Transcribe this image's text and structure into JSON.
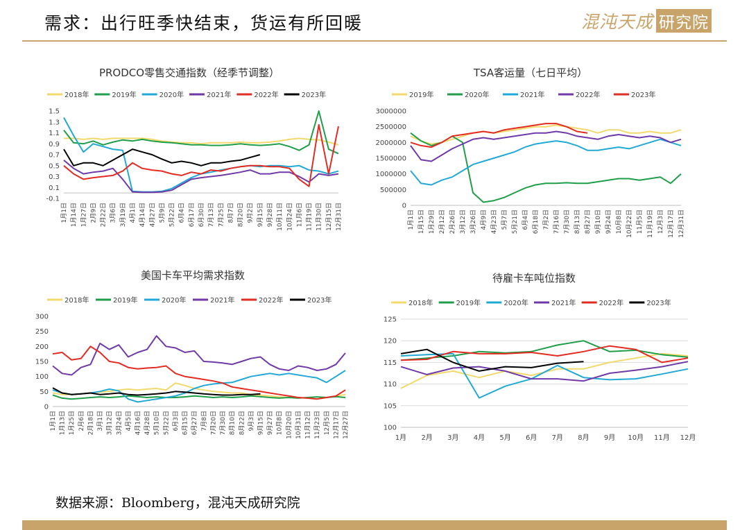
{
  "page": {
    "title": "需求：出行旺季快结束，货运有所回暖",
    "logo_text": "混沌天成",
    "logo_box_text": "研究院",
    "source": "数据来源：Bloomberg，混沌天成研究院",
    "accent_color": "#c9a46a"
  },
  "chart_data": [
    {
      "type": "line",
      "title": "PRODCO零售交通指数（经季节调整）",
      "ylim": [
        -0.1,
        1.5
      ],
      "yticks": [
        -0.1,
        0.1,
        0.3,
        0.5,
        0.7,
        0.9,
        1.1,
        1.3,
        1.5
      ],
      "x_labels": [
        "1月1日",
        "1月14日",
        "1月27日",
        "2月9日",
        "2月22日",
        "3月6日",
        "3月19日",
        "4月1日",
        "4月14日",
        "4月27日",
        "5月9日",
        "5月22日",
        "6月4日",
        "6月17日",
        "6月30日",
        "7月13日",
        "7月25日",
        "8月7日",
        "8月20日",
        "9月2日",
        "9月15日",
        "9月28日",
        "10月11日",
        "10月24日",
        "11月6日",
        "11月19日",
        "11月30日",
        "12月15日",
        "12月31日"
      ],
      "legend": "top",
      "grid": false,
      "series": [
        {
          "name": "2018年",
          "color": "#f2d96b",
          "values": [
            1.0,
            1.0,
            0.98,
            1.0,
            0.98,
            1.0,
            1.0,
            1.0,
            1.0,
            0.98,
            0.95,
            0.93,
            0.92,
            0.92,
            0.9,
            0.92,
            0.92,
            0.92,
            0.93,
            0.92,
            0.92,
            0.93,
            0.95,
            0.98,
            1.0,
            0.98,
            0.97,
            0.93,
            0.88
          ]
        },
        {
          "name": "2019年",
          "color": "#1f9e4a",
          "values": [
            1.15,
            0.92,
            0.9,
            0.95,
            0.88,
            0.93,
            0.97,
            0.95,
            0.98,
            0.95,
            0.93,
            0.92,
            0.9,
            0.88,
            0.88,
            0.87,
            0.87,
            0.88,
            0.9,
            0.88,
            0.87,
            0.88,
            0.9,
            0.85,
            0.78,
            0.88,
            1.5,
            0.8,
            0.72
          ]
        },
        {
          "name": "2020年",
          "color": "#21a9d6",
          "values": [
            1.38,
            1.05,
            0.75,
            0.9,
            0.85,
            0.8,
            0.78,
            0.03,
            0.02,
            0.02,
            0.03,
            0.08,
            0.18,
            0.28,
            0.35,
            0.38,
            0.42,
            0.45,
            0.48,
            0.5,
            0.48,
            0.5,
            0.5,
            0.48,
            0.5,
            0.42,
            0.4,
            0.35,
            0.4
          ]
        },
        {
          "name": "2021年",
          "color": "#6f3aa8",
          "values": [
            0.6,
            0.45,
            0.35,
            0.38,
            0.4,
            0.45,
            0.25,
            0.02,
            0.01,
            0.01,
            0.02,
            0.05,
            0.15,
            0.25,
            0.28,
            0.3,
            0.32,
            0.35,
            0.38,
            0.42,
            0.35,
            0.35,
            0.38,
            0.38,
            0.3,
            0.2,
            0.35,
            0.32,
            0.35
          ]
        },
        {
          "name": "2022年",
          "color": "#e32b22",
          "values": [
            0.5,
            0.35,
            0.25,
            0.28,
            0.3,
            0.32,
            0.4,
            0.55,
            0.45,
            0.42,
            0.4,
            0.35,
            0.32,
            0.38,
            0.35,
            0.42,
            0.4,
            0.45,
            0.48,
            0.5,
            0.5,
            0.48,
            0.48,
            0.45,
            0.25,
            0.12,
            1.25,
            0.35,
            1.22
          ]
        },
        {
          "name": "2023年",
          "color": "#000000",
          "values": [
            0.8,
            0.5,
            0.55,
            0.55,
            0.5,
            0.6,
            0.7,
            0.8,
            0.75,
            0.7,
            0.62,
            0.55,
            0.58,
            0.55,
            0.5,
            0.55,
            0.55,
            0.58,
            0.6,
            0.65,
            0.7,
            null,
            null,
            null,
            null,
            null,
            null,
            null,
            null
          ]
        }
      ]
    },
    {
      "type": "line",
      "title": "TSA客运量（七日平均）",
      "ylim": [
        0,
        3000000
      ],
      "yticks": [
        0,
        500000,
        1000000,
        1500000,
        2000000,
        2500000,
        3000000
      ],
      "x_labels": [
        "1月1日",
        "1月15日",
        "1月29日",
        "2月12日",
        "2月26日",
        "3月12日",
        "3月26日",
        "4月9日",
        "4月23日",
        "5月7日",
        "5月21日",
        "6月4日",
        "6月18日",
        "7月2日",
        "7月16日",
        "7月30日",
        "8月13日",
        "8月27日",
        "9月10日",
        "9月24日",
        "10月8日",
        "10月22日",
        "11月5日",
        "11月19日",
        "12月3日",
        "12月17日",
        "12月31日"
      ],
      "legend": "top",
      "grid": false,
      "series": [
        {
          "name": "2019年",
          "color": "#f2d96b",
          "values": [
            2200000,
            2050000,
            1950000,
            2000000,
            2100000,
            2200000,
            2300000,
            2350000,
            2300000,
            2350000,
            2400000,
            2450000,
            2500000,
            2500000,
            2550000,
            2500000,
            2450000,
            2400000,
            2300000,
            2400000,
            2400000,
            2300000,
            2300000,
            2350000,
            2300000,
            2300000,
            2400000
          ]
        },
        {
          "name": "2020年",
          "color": "#1f9e4a",
          "values": [
            2300000,
            2050000,
            1900000,
            2000000,
            2200000,
            2000000,
            400000,
            100000,
            150000,
            250000,
            400000,
            550000,
            650000,
            700000,
            700000,
            720000,
            700000,
            700000,
            750000,
            800000,
            850000,
            850000,
            800000,
            850000,
            900000,
            700000,
            1000000
          ]
        },
        {
          "name": "2021年",
          "color": "#21a9d6",
          "values": [
            1100000,
            700000,
            650000,
            800000,
            900000,
            1100000,
            1300000,
            1400000,
            1500000,
            1600000,
            1700000,
            1850000,
            1950000,
            2000000,
            2050000,
            2000000,
            1900000,
            1750000,
            1750000,
            1800000,
            1850000,
            1800000,
            1900000,
            2000000,
            2100000,
            2000000,
            1900000
          ]
        },
        {
          "name": "2022年",
          "color": "#6f3aa8",
          "values": [
            1900000,
            1450000,
            1400000,
            1600000,
            1800000,
            1950000,
            2100000,
            2150000,
            2100000,
            2150000,
            2200000,
            2250000,
            2300000,
            2300000,
            2350000,
            2300000,
            2200000,
            2150000,
            2100000,
            2200000,
            2250000,
            2200000,
            2150000,
            2200000,
            2150000,
            2000000,
            2100000
          ]
        },
        {
          "name": "2023年",
          "color": "#e32b22",
          "values": [
            2000000,
            1900000,
            1850000,
            2000000,
            2200000,
            2250000,
            2300000,
            2350000,
            2300000,
            2400000,
            2450000,
            2500000,
            2550000,
            2600000,
            2600000,
            2500000,
            2350000,
            2300000,
            null,
            null,
            null,
            null,
            null,
            null,
            null,
            null,
            null
          ]
        }
      ]
    },
    {
      "type": "line",
      "title": "美国卡车平均需求指数",
      "ylim": [
        0,
        300
      ],
      "yticks": [
        0,
        50,
        100,
        150,
        200,
        250,
        300
      ],
      "x_labels": [
        "1月1日",
        "1月13日",
        "1月25日",
        "2月6日",
        "2月18日",
        "3月1日",
        "3月12日",
        "3月24日",
        "4月5日",
        "4月16日",
        "4月28日",
        "5月10日",
        "5月22日",
        "6月3日",
        "6月15日",
        "6月27日",
        "7月8日",
        "7月20日",
        "7月30日",
        "8月10日",
        "8月22日",
        "9月3日",
        "9月15日",
        "9月27日",
        "10月8日",
        "10月20日",
        "10月31日",
        "11月12日",
        "11月23日",
        "12月5日",
        "12月17日",
        "12月27日"
      ],
      "legend": "top",
      "grid": false,
      "series": [
        {
          "name": "2018年",
          "color": "#f2d96b",
          "values": [
            45,
            40,
            40,
            42,
            45,
            48,
            50,
            55,
            58,
            55,
            58,
            60,
            55,
            78,
            70,
            60,
            55,
            50,
            48,
            45,
            45,
            40,
            38,
            35,
            32,
            30,
            30,
            28,
            25,
            30,
            35,
            40
          ]
        },
        {
          "name": "2019年",
          "color": "#1f9e4a",
          "values": [
            38,
            28,
            25,
            27,
            30,
            32,
            30,
            32,
            35,
            33,
            30,
            32,
            30,
            30,
            32,
            35,
            33,
            30,
            32,
            30,
            32,
            35,
            33,
            30,
            28,
            30,
            28,
            30,
            32,
            30,
            33,
            30
          ]
        },
        {
          "name": "2020年",
          "color": "#21a9d6",
          "values": [
            55,
            45,
            40,
            42,
            45,
            50,
            58,
            52,
            25,
            15,
            20,
            25,
            30,
            35,
            45,
            60,
            70,
            75,
            78,
            80,
            90,
            100,
            105,
            110,
            105,
            110,
            105,
            100,
            95,
            80,
            100,
            120
          ]
        },
        {
          "name": "2021年",
          "color": "#6f3aa8",
          "values": [
            135,
            110,
            105,
            130,
            140,
            210,
            190,
            205,
            165,
            180,
            190,
            235,
            200,
            195,
            180,
            185,
            150,
            148,
            145,
            140,
            150,
            160,
            165,
            140,
            125,
            120,
            135,
            130,
            120,
            125,
            140,
            178
          ]
        },
        {
          "name": "2022年",
          "color": "#e32b22",
          "values": [
            175,
            180,
            155,
            160,
            200,
            180,
            150,
            145,
            130,
            125,
            128,
            130,
            135,
            110,
            100,
            95,
            90,
            85,
            78,
            65,
            60,
            55,
            50,
            45,
            40,
            35,
            30,
            28,
            25,
            30,
            35,
            55
          ]
        },
        {
          "name": "2023年",
          "color": "#000000",
          "values": [
            62,
            45,
            40,
            42,
            45,
            40,
            42,
            45,
            40,
            38,
            40,
            42,
            45,
            50,
            48,
            45,
            42,
            40,
            38,
            38,
            40,
            40,
            42,
            null,
            null,
            null,
            null,
            null,
            null,
            null,
            null,
            null
          ]
        }
      ]
    },
    {
      "type": "line",
      "title": "待雇卡车吨位指数",
      "ylim": [
        100,
        125
      ],
      "yticks": [
        100,
        105,
        110,
        115,
        120,
        125
      ],
      "x_labels": [
        "1月",
        "2月",
        "3月",
        "4月",
        "5月",
        "6月",
        "7月",
        "8月",
        "9月",
        "10月",
        "11月",
        "12月"
      ],
      "legend": "top",
      "grid": true,
      "series": [
        {
          "name": "2018年",
          "color": "#f2d96b",
          "values": [
            109,
            112,
            113,
            111.5,
            113,
            112,
            113.5,
            113.5,
            115,
            116,
            117,
            116.5
          ]
        },
        {
          "name": "2019年",
          "color": "#1f9e4a",
          "values": [
            115.5,
            116,
            116.5,
            117.5,
            117.2,
            117.5,
            119,
            120,
            117.5,
            117.8,
            116.8,
            116.2
          ]
        },
        {
          "name": "2020年",
          "color": "#21a9d6",
          "values": [
            116.5,
            116.8,
            117,
            106.8,
            109.5,
            111.2,
            114.3,
            111.5,
            111,
            111.2,
            112.3,
            113.5
          ]
        },
        {
          "name": "2021年",
          "color": "#6f3aa8",
          "values": [
            114,
            112.2,
            113.7,
            114,
            113,
            111.2,
            111.2,
            110.7,
            112.5,
            113.2,
            114,
            115.2
          ]
        },
        {
          "name": "2022年",
          "color": "#e32b22",
          "values": [
            115.5,
            115.7,
            117.5,
            117,
            117,
            117.3,
            116.5,
            117.5,
            118.8,
            118,
            115,
            116
          ]
        },
        {
          "name": "2023年",
          "color": "#000000",
          "values": [
            117,
            118,
            115,
            113,
            114,
            113.8,
            114.8,
            115.2,
            null,
            null,
            null,
            null
          ]
        }
      ]
    }
  ]
}
